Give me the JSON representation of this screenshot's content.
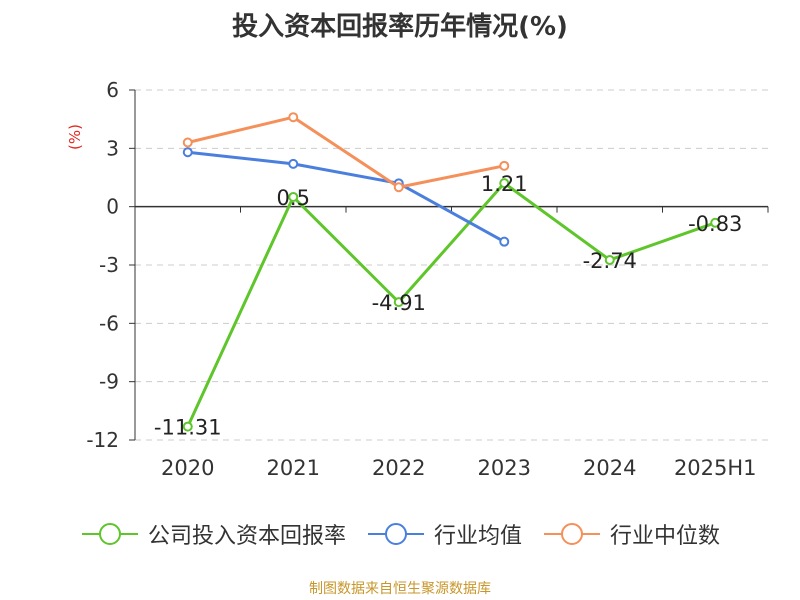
{
  "chart_data": {
    "type": "line",
    "title": "投入资本回报率历年情况(%)",
    "unit_label": "(%)",
    "categories": [
      "2020",
      "2021",
      "2022",
      "2023",
      "2024",
      "2025H1"
    ],
    "ylim": [
      -12,
      6
    ],
    "yticks": [
      6,
      3,
      0,
      -3,
      -6,
      -9,
      -12
    ],
    "grid": true,
    "legend_position": "bottom",
    "series": [
      {
        "name": "公司投入资本回报率",
        "color": "#5ec52a",
        "values": [
          -11.31,
          0.5,
          -4.91,
          1.21,
          -2.74,
          -0.83
        ],
        "labels": [
          "-11.31",
          "0.5",
          "-4.91",
          "1.21",
          "-2.74",
          "-0.83"
        ]
      },
      {
        "name": "行业均值",
        "color": "#4a7fdd",
        "values": [
          2.8,
          2.2,
          1.2,
          -1.8,
          null,
          null
        ]
      },
      {
        "name": "行业中位数",
        "color": "#f5905a",
        "values": [
          3.3,
          4.6,
          1.0,
          2.1,
          null,
          null
        ]
      }
    ]
  },
  "source": "制图数据来自恒生聚源数据库"
}
